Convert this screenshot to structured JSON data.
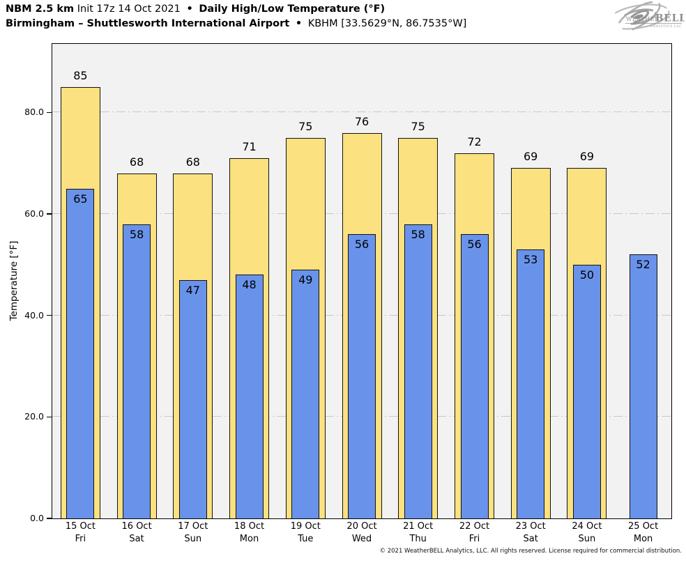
{
  "header": {
    "line1": {
      "model": "NBM 2.5 km",
      "init": "Init 17z 14 Oct 2021",
      "sep": "•",
      "product": "Daily High/Low Temperature (°F)"
    },
    "line2": {
      "station": "Birmingham – Shuttlesworth International Airport",
      "sep": "•",
      "station_id": "KBHM [33.5629°N, 86.7535°W]"
    }
  },
  "logo": {
    "word_weather": "Weather",
    "word_bell": "BELL",
    "subtext": "Analytics LLC"
  },
  "footer": {
    "copyright": "© 2021 WeatherBELL Analytics, LLC. All rights reserved. License required for commercial distribution."
  },
  "colors": {
    "high_bar": "#FBE180",
    "low_bar": "#6993EB",
    "bar_outline": "#111111",
    "plot_background": "#F2F2F2",
    "gridline": "#C8C8C8",
    "axis": "#000000",
    "page_background": "#FFFFFF",
    "logo_gray": "#9A9A9A"
  },
  "chart_data": {
    "type": "bar",
    "title": "Daily High/Low Temperature (°F)",
    "subtitle": "NBM 2.5 km Init 17z 14 Oct 2021 — Birmingham – Shuttlesworth International Airport (KBHM)",
    "xlabel": "",
    "ylabel": "Temperature [°F]",
    "ylim": [
      0,
      93.5
    ],
    "yticks": [
      {
        "value": 0,
        "label": "0.0"
      },
      {
        "value": 20,
        "label": "20.0"
      },
      {
        "value": 40,
        "label": "40.0"
      },
      {
        "value": 60,
        "label": "60.0"
      },
      {
        "value": 80,
        "label": "80.0"
      }
    ],
    "grid": true,
    "grid_style": "horizontal dash-dot",
    "legend_position": "none",
    "categories": [
      {
        "date": "15 Oct",
        "weekday": "Fri"
      },
      {
        "date": "16 Oct",
        "weekday": "Sat"
      },
      {
        "date": "17 Oct",
        "weekday": "Sun"
      },
      {
        "date": "18 Oct",
        "weekday": "Mon"
      },
      {
        "date": "19 Oct",
        "weekday": "Tue"
      },
      {
        "date": "20 Oct",
        "weekday": "Wed"
      },
      {
        "date": "21 Oct",
        "weekday": "Thu"
      },
      {
        "date": "22 Oct",
        "weekday": "Fri"
      },
      {
        "date": "23 Oct",
        "weekday": "Sat"
      },
      {
        "date": "24 Oct",
        "weekday": "Sun"
      },
      {
        "date": "25 Oct",
        "weekday": "Mon"
      }
    ],
    "series": [
      {
        "name": "High",
        "color": "#FBE180",
        "values": [
          85,
          68,
          68,
          71,
          75,
          76,
          75,
          72,
          69,
          69,
          null
        ]
      },
      {
        "name": "Low",
        "color": "#6993EB",
        "values": [
          65,
          58,
          47,
          48,
          49,
          56,
          58,
          56,
          53,
          50,
          52
        ]
      }
    ]
  }
}
